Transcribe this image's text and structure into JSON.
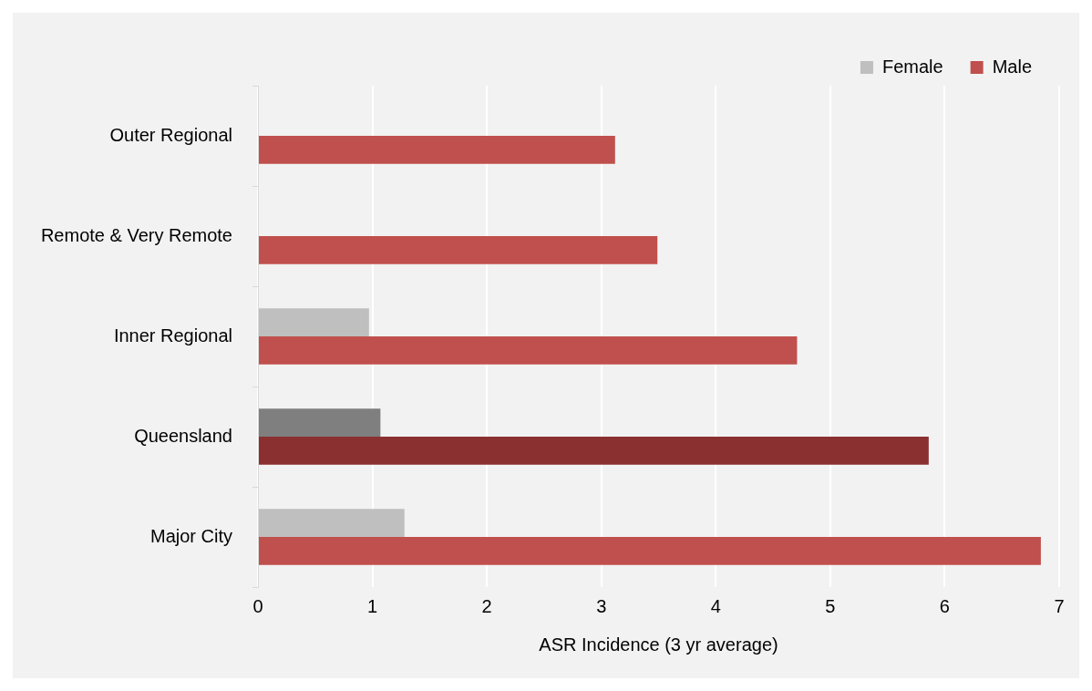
{
  "chart_data": {
    "type": "bar",
    "orientation": "horizontal",
    "xlabel": "ASR Incidence (3 yr average)",
    "categories": [
      "Outer Regional",
      "Remote & Very Remote",
      "Inner Regional",
      "Queensland",
      "Major City"
    ],
    "series": [
      {
        "name": "Female",
        "color": "#bfbfbf",
        "colors": [
          "#bfbfbf",
          "#bfbfbf",
          "#bfbfbf",
          "#7f7f7f",
          "#bfbfbf"
        ],
        "values": [
          null,
          null,
          0.97,
          1.07,
          1.28
        ]
      },
      {
        "name": "Male",
        "color": "#c0504d",
        "colors": [
          "#c0504d",
          "#c0504d",
          "#c0504d",
          "#8b3030",
          "#c0504d"
        ],
        "values": [
          3.12,
          3.49,
          4.71,
          5.86,
          6.84
        ]
      }
    ],
    "xlim": [
      0,
      7
    ],
    "xticks": [
      0,
      1,
      2,
      3,
      4,
      5,
      6,
      7
    ],
    "grid": "x",
    "legend": "top right"
  }
}
